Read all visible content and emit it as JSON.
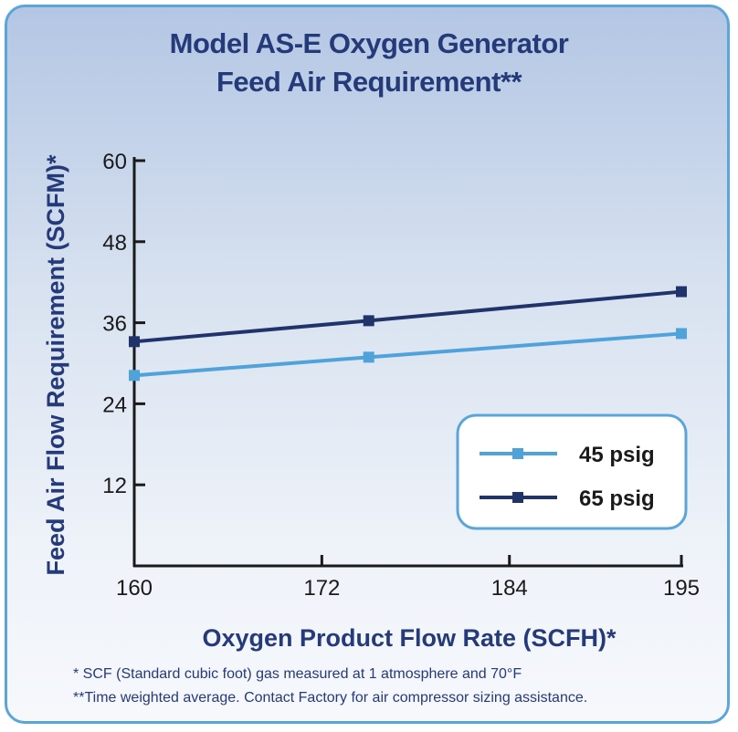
{
  "chart_data": {
    "type": "line",
    "title": "Model AS-E Oxygen Generator",
    "subtitle": "Feed Air Requirement**",
    "xlabel": "Oxygen Product Flow Rate (SCFH)*",
    "ylabel": "Feed Air Flow Requirement (SCFM)*",
    "x_ticks": [
      160,
      172,
      184,
      195
    ],
    "y_ticks": [
      12,
      24,
      36,
      48,
      60
    ],
    "xlim": [
      160,
      195
    ],
    "ylim": [
      0,
      60
    ],
    "grid": false,
    "legend_position": "bottom-right",
    "x": [
      160,
      175,
      195
    ],
    "series": [
      {
        "name": "45 psig",
        "color": "#4fa3da",
        "values": [
          28.2,
          30.9,
          34.4
        ]
      },
      {
        "name": "65 psig",
        "color": "#20336b",
        "values": [
          33.2,
          36.3,
          40.6
        ]
      }
    ],
    "footnotes": [
      "* SCF (Standard cubic foot) gas measured at 1 atmosphere and 70°F",
      "**Time weighted average. Contact Factory for air compressor sizing assistance."
    ]
  }
}
